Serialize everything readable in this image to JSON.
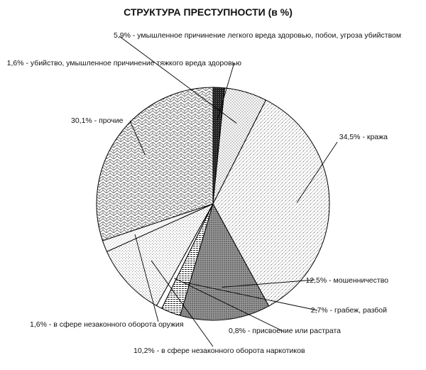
{
  "chart_data": {
    "type": "pie",
    "title": "СТРУКТУРА ПРЕСТУПНОСТИ  (в %)",
    "slices": [
      {
        "label": "1,6% - убийство, умышленное причинение тяжкого вреда здоровью",
        "value": 1.6,
        "pattern": "dark"
      },
      {
        "label": "5,9% - умышленное причинение легкого вреда здоровью, побои, угроза убийством",
        "value": 5.9,
        "pattern": "dots"
      },
      {
        "label": "34,5% - кража",
        "value": 34.5,
        "pattern": "fine-cross"
      },
      {
        "label": "12,5% - мошенничество",
        "value": 12.5,
        "pattern": "dense-dots"
      },
      {
        "label": "2,7% - грабеж, разбой",
        "value": 2.7,
        "pattern": "hlines"
      },
      {
        "label": "0,8% - присвоение или растрата",
        "value": 0.8,
        "pattern": "white"
      },
      {
        "label": "10,2% - в сфере незаконного оборота наркотиков",
        "value": 10.2,
        "pattern": "speckle"
      },
      {
        "label": "1,6% - в сфере незаконного оборота оружия",
        "value": 1.6,
        "pattern": "diag-fine"
      },
      {
        "label": "30,1% - прочие",
        "value": 30.1,
        "pattern": "shingles"
      }
    ]
  }
}
